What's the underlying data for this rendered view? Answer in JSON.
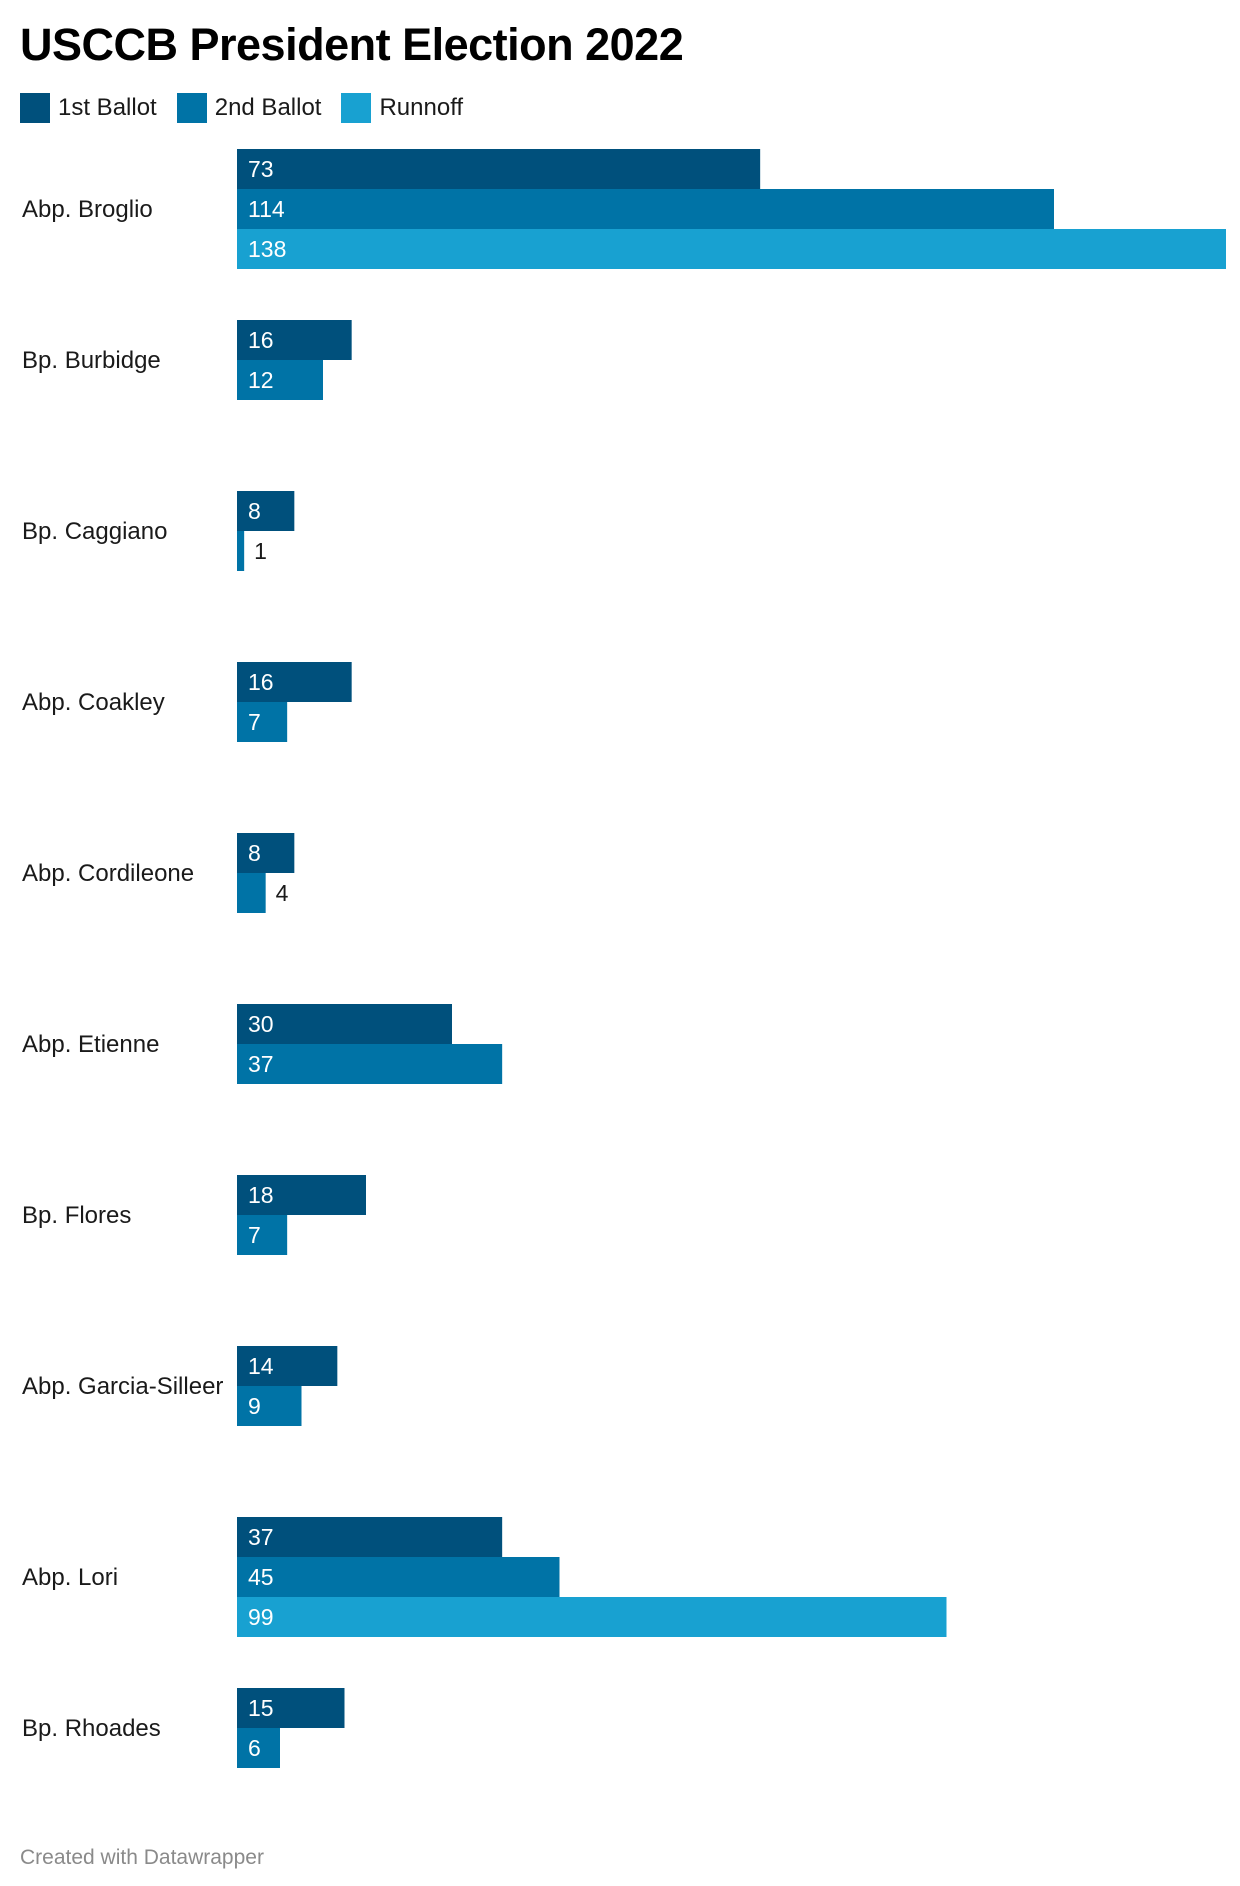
{
  "title": "USCCB President Election 2022",
  "footer": "Created with Datawrapper",
  "chart_data": {
    "type": "bar",
    "orientation": "horizontal",
    "title": "USCCB President Election 2022",
    "legend_position": "top-left",
    "grid": false,
    "xlim": [
      0,
      138
    ],
    "categories": [
      "Abp. Broglio",
      "Bp. Burbidge",
      "Bp. Caggiano",
      "Abp. Coakley",
      "Abp. Cordileone",
      "Abp. Etienne",
      "Bp. Flores",
      "Abp. Garcia-Silleer",
      "Abp. Lori",
      "Bp. Rhoades"
    ],
    "series": [
      {
        "name": "1st Ballot",
        "color": "#00507c",
        "values": [
          73,
          16,
          8,
          16,
          8,
          30,
          18,
          14,
          37,
          15
        ]
      },
      {
        "name": "2nd Ballot",
        "color": "#0073a6",
        "values": [
          114,
          12,
          1,
          7,
          4,
          37,
          7,
          9,
          45,
          6
        ]
      },
      {
        "name": "Runnoff",
        "color": "#18a1d1",
        "values": [
          138,
          null,
          null,
          null,
          null,
          null,
          null,
          null,
          99,
          null
        ]
      }
    ]
  }
}
